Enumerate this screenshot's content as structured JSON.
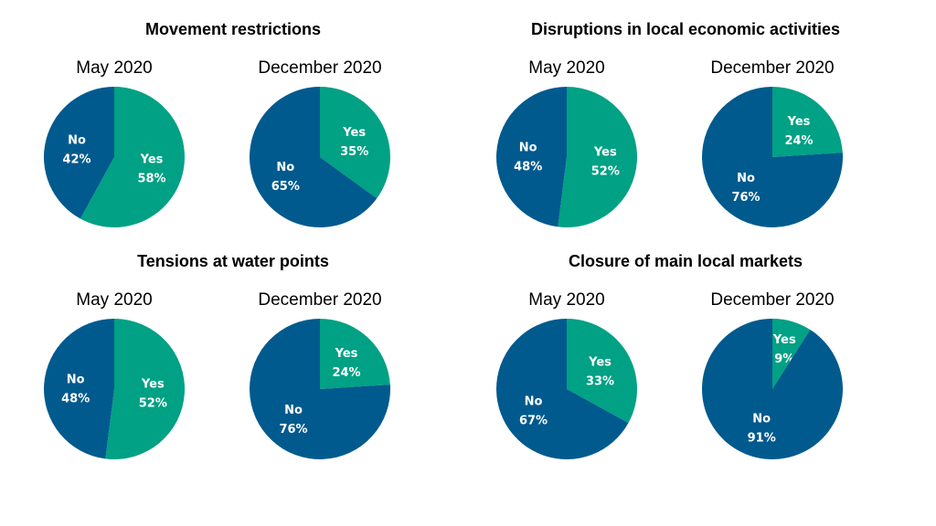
{
  "colors": {
    "yes": "#00A184",
    "no": "#005A8E"
  },
  "chart_data": [
    {
      "type": "pie",
      "title": "Movement restrictions",
      "pies": [
        {
          "subtitle": "May 2020",
          "slices": [
            {
              "label": "Yes",
              "value": 58,
              "display": "58%"
            },
            {
              "label": "No",
              "value": 42,
              "display": "42%"
            }
          ]
        },
        {
          "subtitle": "December 2020",
          "slices": [
            {
              "label": "Yes",
              "value": 35,
              "display": "35%"
            },
            {
              "label": "No",
              "value": 65,
              "display": "65%"
            }
          ]
        }
      ]
    },
    {
      "type": "pie",
      "title": "Disruptions in local economic activities",
      "pies": [
        {
          "subtitle": "May 2020",
          "slices": [
            {
              "label": "Yes",
              "value": 52,
              "display": "52%"
            },
            {
              "label": "No",
              "value": 48,
              "display": "48%"
            }
          ]
        },
        {
          "subtitle": "December 2020",
          "slices": [
            {
              "label": "Yes",
              "value": 24,
              "display": "24%"
            },
            {
              "label": "No",
              "value": 76,
              "display": "76%"
            }
          ]
        }
      ]
    },
    {
      "type": "pie",
      "title": "Tensions at water points",
      "pies": [
        {
          "subtitle": "May 2020",
          "slices": [
            {
              "label": "Yes",
              "value": 52,
              "display": "52%"
            },
            {
              "label": "No",
              "value": 48,
              "display": "48%"
            }
          ]
        },
        {
          "subtitle": "December 2020",
          "slices": [
            {
              "label": "Yes",
              "value": 24,
              "display": "24%"
            },
            {
              "label": "No",
              "value": 76,
              "display": "76%"
            }
          ]
        }
      ]
    },
    {
      "type": "pie",
      "title": "Closure of main local markets",
      "pies": [
        {
          "subtitle": "May 2020",
          "slices": [
            {
              "label": "Yes",
              "value": 33,
              "display": "33%"
            },
            {
              "label": "No",
              "value": 67,
              "display": "67%"
            }
          ]
        },
        {
          "subtitle": "December 2020",
          "slices": [
            {
              "label": "Yes",
              "value": 9,
              "display": "9%"
            },
            {
              "label": "No",
              "value": 91,
              "display": "91%"
            }
          ]
        }
      ]
    }
  ]
}
